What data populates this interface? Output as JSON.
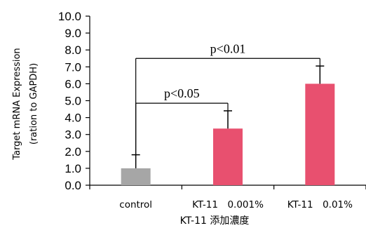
{
  "chart_data": {
    "type": "bar",
    "categories": [
      "control",
      "KT-11　0.001%",
      "KT-11　0.01%"
    ],
    "values": [
      1.0,
      3.35,
      6.0
    ],
    "errors": [
      0.8,
      1.05,
      1.05
    ],
    "colors": [
      "#a6a6a6",
      "#e8506f",
      "#e8506f"
    ],
    "ylabel_line1": "Target mRNA Expression",
    "ylabel_line2": "(ration to GAPDH)",
    "xlabel": "KT-11 添加濃度",
    "ylim": [
      0,
      10
    ],
    "yticks": [
      "0.0",
      "1.0",
      "2.0",
      "3.0",
      "4.0",
      "5.0",
      "6.0",
      "7.0",
      "8.0",
      "9.0",
      "10.0"
    ],
    "grid": false,
    "significance": [
      {
        "label": "p<0.05",
        "from": 0,
        "to": 1
      },
      {
        "label": "p<0.01",
        "from": 0,
        "to": 2
      }
    ]
  }
}
